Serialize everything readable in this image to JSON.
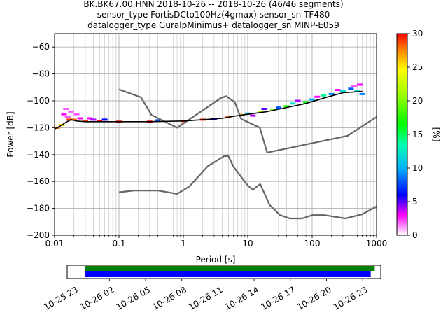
{
  "chart_data": [
    {
      "type": "heatmap",
      "title_lines": [
        "BK.BK67.00.HNN   2018-10-26 -- 2018-10-26  (46/46 segments)",
        "sensor_type FortisDCto100Hz(4gmax) sensor_sn TF480",
        "datalogger_type GuralpMinimus+ datalogger_sn MINP-E059"
      ],
      "xlabel": "Period [s]",
      "ylabel": "Power [dB]",
      "xscale": "log",
      "xlim": [
        0.01,
        1000
      ],
      "ylim": [
        -200,
        -50
      ],
      "x_ticks": [
        0.01,
        0.1,
        1,
        10,
        100,
        1000
      ],
      "x_tick_labels": [
        "0.01",
        "0.1",
        "1",
        "10",
        "100",
        "1000"
      ],
      "y_ticks": [
        -200,
        -180,
        -160,
        -140,
        -120,
        -100,
        -80,
        -60
      ],
      "y_tick_labels": [
        "−200",
        "−180",
        "−160",
        "−140",
        "−120",
        "−100",
        "−80",
        "−60"
      ],
      "grid": true,
      "colorbar": {
        "label": "[%]",
        "range": [
          0,
          30
        ],
        "ticks": [
          0,
          5,
          10,
          15,
          20,
          25,
          30
        ],
        "tick_labels": [
          "0",
          "5",
          "10",
          "15",
          "20",
          "25",
          "30"
        ]
      },
      "series": [
        {
          "role": "noise-model-high",
          "color": "#666666",
          "x": [
            0.1,
            0.22,
            0.32,
            0.8,
            3.8,
            4.6,
            6.3,
            7.9,
            15.4,
            20,
            354.8,
            1000
          ],
          "y": [
            -91.5,
            -97.4,
            -110.5,
            -120,
            -98,
            -96.5,
            -101,
            -113.5,
            -120,
            -138.5,
            -126,
            -112
          ]
        },
        {
          "role": "noise-model-low",
          "color": "#666666",
          "x": [
            0.1,
            0.17,
            0.4,
            0.8,
            1.24,
            2.4,
            4.3,
            5.0,
            6.0,
            10,
            12,
            15.6,
            21.9,
            31.6,
            45,
            70,
            101,
            154,
            328,
            600,
            1000
          ],
          "y": [
            -168,
            -166.7,
            -166.7,
            -169.2,
            -163.7,
            -148.6,
            -141.1,
            -141.1,
            -149,
            -163,
            -166,
            -162,
            -177.5,
            -185,
            -187.5,
            -187.5,
            -185,
            -185,
            -187.5,
            -184.4,
            -178.5
          ]
        },
        {
          "role": "mode-psd",
          "color": "#000000",
          "x": [
            0.01,
            0.012,
            0.015,
            0.018,
            0.022,
            0.03,
            0.05,
            0.1,
            0.3,
            1,
            2,
            4,
            6,
            10,
            20,
            40,
            80,
            150,
            300,
            600
          ],
          "y": [
            -121,
            -119,
            -116,
            -114,
            -115,
            -115.5,
            -115.5,
            -115.5,
            -115.5,
            -115,
            -114,
            -113,
            -111.5,
            -110,
            -108,
            -105,
            -102,
            -98,
            -94,
            -93
          ]
        }
      ],
      "heatmap_bins": [
        {
          "x": 0.011,
          "y": -120,
          "pct": 28
        },
        {
          "x": 0.013,
          "y": -118,
          "pct": 25
        },
        {
          "x": 0.014,
          "y": -110,
          "pct": 3
        },
        {
          "x": 0.015,
          "y": -106,
          "pct": 2
        },
        {
          "x": 0.016,
          "y": -112,
          "pct": 2
        },
        {
          "x": 0.017,
          "y": -114,
          "pct": 29
        },
        {
          "x": 0.018,
          "y": -108,
          "pct": 2
        },
        {
          "x": 0.02,
          "y": -114,
          "pct": 28
        },
        {
          "x": 0.022,
          "y": -110,
          "pct": 2
        },
        {
          "x": 0.025,
          "y": -113,
          "pct": 3
        },
        {
          "x": 0.03,
          "y": -115,
          "pct": 29
        },
        {
          "x": 0.035,
          "y": -113,
          "pct": 3
        },
        {
          "x": 0.04,
          "y": -114,
          "pct": 4
        },
        {
          "x": 0.05,
          "y": -115,
          "pct": 30
        },
        {
          "x": 0.06,
          "y": -114,
          "pct": 6
        },
        {
          "x": 0.1,
          "y": -115.5,
          "pct": 30
        },
        {
          "x": 0.3,
          "y": -115.5,
          "pct": 30
        },
        {
          "x": 0.4,
          "y": -114.5,
          "pct": 8
        },
        {
          "x": 1,
          "y": -115,
          "pct": 30
        },
        {
          "x": 2,
          "y": -114,
          "pct": 29
        },
        {
          "x": 3,
          "y": -113.5,
          "pct": 6
        },
        {
          "x": 5,
          "y": -112,
          "pct": 28
        },
        {
          "x": 8,
          "y": -110.5,
          "pct": 26
        },
        {
          "x": 10,
          "y": -109.5,
          "pct": 10
        },
        {
          "x": 12,
          "y": -111,
          "pct": 4
        },
        {
          "x": 16,
          "y": -108,
          "pct": 22
        },
        {
          "x": 18,
          "y": -106,
          "pct": 5
        },
        {
          "x": 25,
          "y": -107,
          "pct": 20
        },
        {
          "x": 30,
          "y": -105,
          "pct": 8
        },
        {
          "x": 40,
          "y": -104,
          "pct": 18
        },
        {
          "x": 50,
          "y": -102,
          "pct": 12
        },
        {
          "x": 60,
          "y": -100,
          "pct": 4
        },
        {
          "x": 80,
          "y": -101,
          "pct": 16
        },
        {
          "x": 100,
          "y": -99,
          "pct": 10
        },
        {
          "x": 120,
          "y": -97,
          "pct": 3
        },
        {
          "x": 150,
          "y": -96,
          "pct": 14
        },
        {
          "x": 200,
          "y": -95,
          "pct": 9
        },
        {
          "x": 250,
          "y": -92,
          "pct": 3
        },
        {
          "x": 300,
          "y": -93,
          "pct": 12
        },
        {
          "x": 400,
          "y": -91,
          "pct": 8
        },
        {
          "x": 450,
          "y": -89,
          "pct": 2
        },
        {
          "x": 500,
          "y": -93,
          "pct": 12
        },
        {
          "x": 550,
          "y": -88,
          "pct": 3
        },
        {
          "x": 600,
          "y": -95,
          "pct": 9
        }
      ]
    },
    {
      "type": "timeline",
      "xlim": [
        "2018-10-25 22:30",
        "2018-10-27 00:30"
      ],
      "x_tick_labels": [
        "10-25 23",
        "10-26 02",
        "10-26 05",
        "10-26 08",
        "10-26 11",
        "10-26 14",
        "10-26 17",
        "10-26 20",
        "10-26 23"
      ],
      "x_ticks": [
        "2018-10-25 23:00",
        "2018-10-26 02:00",
        "2018-10-26 05:00",
        "2018-10-26 08:00",
        "2018-10-26 11:00",
        "2018-10-26 14:00",
        "2018-10-26 17:00",
        "2018-10-26 20:00",
        "2018-10-26 23:00"
      ],
      "bars": [
        {
          "role": "data-available",
          "color": "#008000",
          "start": "2018-10-26 00:00",
          "end": "2018-10-27 00:00"
        },
        {
          "role": "segments-used",
          "color": "#0000ff",
          "start": "2018-10-26 00:00",
          "end": "2018-10-26 23:40"
        }
      ]
    }
  ]
}
